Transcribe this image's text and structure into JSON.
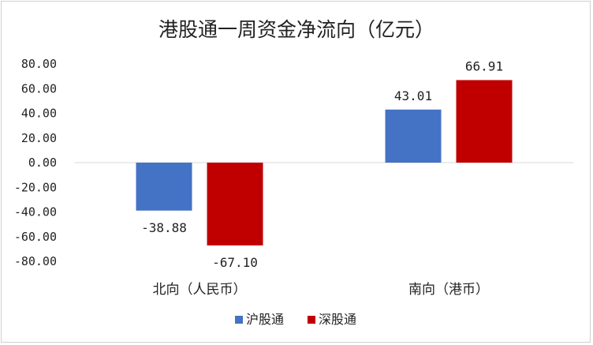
{
  "chart_data": {
    "type": "bar",
    "title": "港股通一周资金净流向（亿元）",
    "categories": [
      "北向（人民币）",
      "南向（港币）"
    ],
    "series": [
      {
        "name": "沪股通",
        "values": [
          -38.88,
          43.01
        ],
        "labels": [
          "-38.88",
          "43.01"
        ],
        "color": "#4472C4"
      },
      {
        "name": "深股通",
        "values": [
          -67.1,
          66.91
        ],
        "labels": [
          "-67.10",
          "66.91"
        ],
        "color": "#C00000"
      }
    ],
    "yticks": [
      "80.00",
      "60.00",
      "40.00",
      "20.00",
      "0.00",
      "-20.00",
      "-40.00",
      "-60.00",
      "-80.00"
    ],
    "ylim": [
      -80,
      80
    ],
    "grid": false,
    "legend": "bottom",
    "xlabel": "",
    "ylabel": ""
  }
}
